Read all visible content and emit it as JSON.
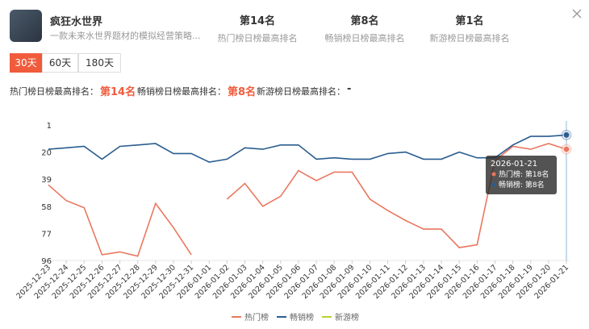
{
  "app": {
    "name": "疯狂水世界",
    "description": "一款未来水世界题材的模拟经营策略..."
  },
  "stats": [
    {
      "value": "第14名",
      "label": "热门榜日榜最高排名"
    },
    {
      "value": "第8名",
      "label": "畅销榜日榜最高排名"
    },
    {
      "value": "第1名",
      "label": "新游榜日榜最高排名"
    }
  ],
  "tabs": [
    "30天",
    "60天",
    "180天"
  ],
  "active_tab": 0,
  "summary": [
    {
      "label": "热门榜日榜最高排名：",
      "value": "第14名"
    },
    {
      "label": "畅销榜日榜最高排名：",
      "value": "第8名"
    },
    {
      "label": "新游榜日榜最高排名：",
      "value": "-"
    }
  ],
  "chart_data": {
    "type": "line",
    "categories": [
      "2025-12-23",
      "2025-12-24",
      "2025-12-25",
      "2025-12-26",
      "2025-12-27",
      "2025-12-28",
      "2025-12-29",
      "2025-12-30",
      "2025-12-31",
      "2026-01-01",
      "2026-01-02",
      "2026-01-03",
      "2026-01-04",
      "2026-01-05",
      "2026-01-06",
      "2026-01-07",
      "2026-01-08",
      "2026-01-09",
      "2026-01-10",
      "2026-01-11",
      "2026-01-12",
      "2026-01-13",
      "2026-01-14",
      "2026-01-15",
      "2026-01-16",
      "2026-01-17",
      "2026-01-18",
      "2026-01-19",
      "2026-01-20",
      "2026-01-21"
    ],
    "series": [
      {
        "name": "热门榜",
        "color": "#e8785f",
        "values": [
          43,
          54,
          59,
          92,
          90,
          93,
          56,
          73,
          92,
          null,
          53,
          42,
          58,
          51,
          33,
          40,
          34,
          34,
          53,
          61,
          68,
          74,
          74,
          87,
          85,
          26,
          16,
          18,
          14,
          18
        ]
      },
      {
        "name": "畅销榜",
        "color": "#2a5d8f",
        "values": [
          18,
          17,
          16,
          25,
          16,
          15,
          14,
          21,
          21,
          27,
          25,
          17,
          18,
          15,
          15,
          25,
          24,
          25,
          25,
          21,
          20,
          25,
          25,
          20,
          24,
          24,
          15,
          9,
          9,
          8
        ]
      },
      {
        "name": "新游榜",
        "color": "#b5d334",
        "values": [
          null,
          null,
          null,
          null,
          null,
          null,
          null,
          null,
          null,
          null,
          null,
          null,
          null,
          null,
          null,
          null,
          null,
          null,
          null,
          null,
          null,
          null,
          null,
          null,
          null,
          null,
          null,
          null,
          null,
          null
        ]
      }
    ],
    "ylim": [
      1,
      96
    ],
    "yticks": [
      1,
      20,
      39,
      58,
      77,
      96
    ],
    "y_inverted": true,
    "legend": "bottom",
    "tooltip": {
      "title": "2026-01-21",
      "lines": [
        "热门榜: 第18名",
        "畅销榜: 第8名"
      ]
    }
  }
}
